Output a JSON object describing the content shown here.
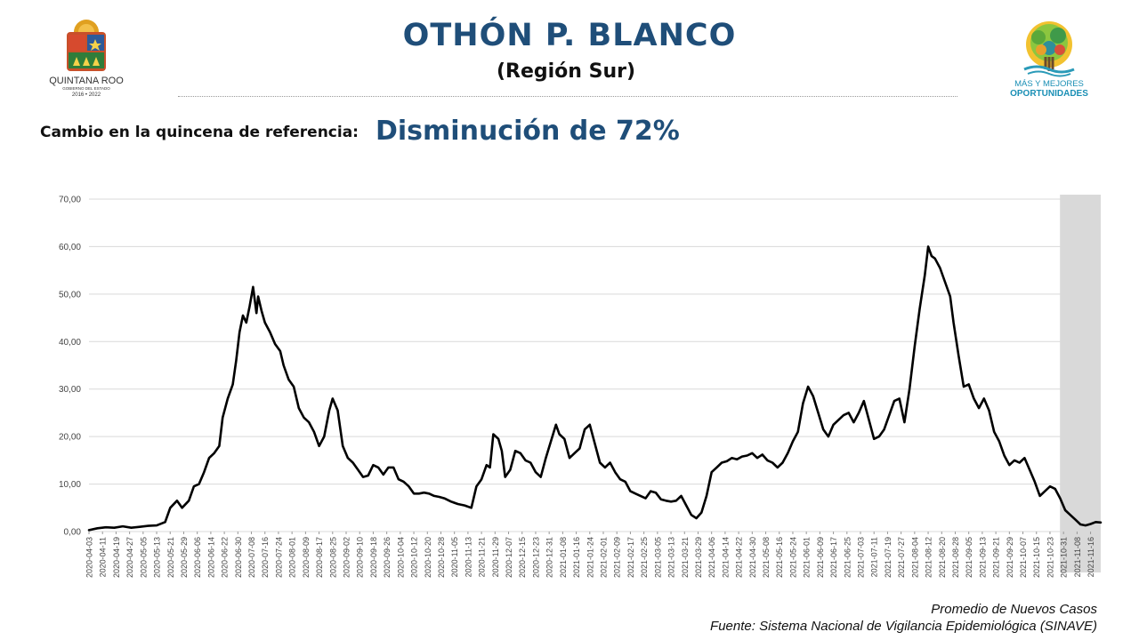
{
  "header": {
    "title": "OTHÓN P. BLANCO",
    "subtitle": "(Región Sur)"
  },
  "summary": {
    "label": "Cambio en la quincena de referencia:",
    "value": "Disminución de 72%"
  },
  "logos": {
    "left": {
      "line1": "QUINTANA ROO",
      "line2": "GOBIERNO DEL ESTADO",
      "line3": "2016 • 2022"
    },
    "right": {
      "line1": "MÁS Y MEJORES",
      "line2": "OPORTUNIDADES"
    }
  },
  "footer": {
    "line1": "Promedio de Nuevos Casos",
    "line2": "Fuente: Sistema Nacional de Vigilancia Epidemiológica (SINAVE)"
  },
  "colors": {
    "title": "#1f4e79",
    "line": "#000000",
    "shade": "#d9d9d9",
    "grid": "#d9d9d9"
  },
  "chart_data": {
    "type": "line",
    "ylim": [
      0,
      70
    ],
    "yticks": [
      "0,00",
      "10,00",
      "20,00",
      "30,00",
      "40,00",
      "50,00",
      "60,00",
      "70,00"
    ],
    "x_start": "2020-04-03",
    "x_end": "2021-11-22",
    "tick_labels": [
      "2020-04-03",
      "2020-04-11",
      "2020-04-19",
      "2020-04-27",
      "2020-05-05",
      "2020-05-13",
      "2020-05-21",
      "2020-05-29",
      "2020-06-06",
      "2020-06-14",
      "2020-06-22",
      "2020-06-30",
      "2020-07-08",
      "2020-07-16",
      "2020-07-24",
      "2020-08-01",
      "2020-08-09",
      "2020-08-17",
      "2020-08-25",
      "2020-09-02",
      "2020-09-10",
      "2020-09-18",
      "2020-09-26",
      "2020-10-04",
      "2020-10-12",
      "2020-10-20",
      "2020-10-28",
      "2020-11-05",
      "2020-11-13",
      "2020-11-21",
      "2020-11-29",
      "2020-12-07",
      "2020-12-15",
      "2020-12-23",
      "2020-12-31",
      "2021-01-08",
      "2021-01-16",
      "2021-01-24",
      "2021-02-01",
      "2021-02-09",
      "2021-02-17",
      "2021-02-25",
      "2021-03-05",
      "2021-03-13",
      "2021-03-21",
      "2021-03-29",
      "2021-04-06",
      "2021-04-14",
      "2021-04-22",
      "2021-04-30",
      "2021-05-08",
      "2021-05-16",
      "2021-05-24",
      "2021-06-01",
      "2021-06-09",
      "2021-06-17",
      "2021-06-25",
      "2021-07-03",
      "2021-07-11",
      "2021-07-19",
      "2021-07-27",
      "2021-08-04",
      "2021-08-12",
      "2021-08-20",
      "2021-08-28",
      "2021-09-05",
      "2021-09-13",
      "2021-09-21",
      "2021-09-29",
      "2021-10-07",
      "2021-10-15",
      "2021-10-23",
      "2021-10-31",
      "2021-11-08",
      "2021-11-16"
    ],
    "shaded_region": [
      "2021-10-31",
      "2021-11-22"
    ],
    "series": [
      {
        "points": [
          [
            "2020-04-03",
            0.3
          ],
          [
            "2020-04-08",
            0.7
          ],
          [
            "2020-04-13",
            0.9
          ],
          [
            "2020-04-18",
            0.8
          ],
          [
            "2020-04-23",
            1.1
          ],
          [
            "2020-04-28",
            0.8
          ],
          [
            "2020-05-03",
            1.0
          ],
          [
            "2020-05-08",
            1.2
          ],
          [
            "2020-05-13",
            1.3
          ],
          [
            "2020-05-18",
            2.0
          ],
          [
            "2020-05-21",
            5.0
          ],
          [
            "2020-05-25",
            6.5
          ],
          [
            "2020-05-28",
            5.0
          ],
          [
            "2020-06-01",
            6.5
          ],
          [
            "2020-06-04",
            9.5
          ],
          [
            "2020-06-07",
            10.0
          ],
          [
            "2020-06-10",
            12.5
          ],
          [
            "2020-06-13",
            15.5
          ],
          [
            "2020-06-16",
            16.5
          ],
          [
            "2020-06-19",
            18.0
          ],
          [
            "2020-06-21",
            24.0
          ],
          [
            "2020-06-24",
            28.0
          ],
          [
            "2020-06-27",
            31.0
          ],
          [
            "2020-06-29",
            36.0
          ],
          [
            "2020-07-01",
            42.0
          ],
          [
            "2020-07-03",
            45.5
          ],
          [
            "2020-07-05",
            44.0
          ],
          [
            "2020-07-07",
            47.5
          ],
          [
            "2020-07-09",
            51.5
          ],
          [
            "2020-07-11",
            46.0
          ],
          [
            "2020-07-12",
            49.5
          ],
          [
            "2020-07-14",
            46.5
          ],
          [
            "2020-07-16",
            44.0
          ],
          [
            "2020-07-19",
            42.0
          ],
          [
            "2020-07-22",
            39.5
          ],
          [
            "2020-07-25",
            38.0
          ],
          [
            "2020-07-27",
            35.0
          ],
          [
            "2020-07-30",
            32.0
          ],
          [
            "2020-08-02",
            30.5
          ],
          [
            "2020-08-05",
            26.0
          ],
          [
            "2020-08-08",
            24.0
          ],
          [
            "2020-08-11",
            23.0
          ],
          [
            "2020-08-14",
            21.0
          ],
          [
            "2020-08-17",
            18.0
          ],
          [
            "2020-08-20",
            20.0
          ],
          [
            "2020-08-23",
            25.5
          ],
          [
            "2020-08-25",
            28.0
          ],
          [
            "2020-08-28",
            25.5
          ],
          [
            "2020-08-31",
            18.0
          ],
          [
            "2020-09-03",
            15.5
          ],
          [
            "2020-09-06",
            14.5
          ],
          [
            "2020-09-09",
            13.0
          ],
          [
            "2020-09-12",
            11.5
          ],
          [
            "2020-09-15",
            11.8
          ],
          [
            "2020-09-18",
            14.0
          ],
          [
            "2020-09-21",
            13.5
          ],
          [
            "2020-09-24",
            12.0
          ],
          [
            "2020-09-27",
            13.5
          ],
          [
            "2020-09-30",
            13.5
          ],
          [
            "2020-10-03",
            11.0
          ],
          [
            "2020-10-06",
            10.5
          ],
          [
            "2020-10-09",
            9.5
          ],
          [
            "2020-10-12",
            8.0
          ],
          [
            "2020-10-15",
            8.0
          ],
          [
            "2020-10-18",
            8.2
          ],
          [
            "2020-10-21",
            8.0
          ],
          [
            "2020-10-24",
            7.5
          ],
          [
            "2020-10-27",
            7.3
          ],
          [
            "2020-10-30",
            7.0
          ],
          [
            "2020-11-03",
            6.3
          ],
          [
            "2020-11-07",
            5.8
          ],
          [
            "2020-11-11",
            5.5
          ],
          [
            "2020-11-15",
            5.0
          ],
          [
            "2020-11-18",
            9.5
          ],
          [
            "2020-11-21",
            11.0
          ],
          [
            "2020-11-24",
            14.0
          ],
          [
            "2020-11-26",
            13.5
          ],
          [
            "2020-11-28",
            20.5
          ],
          [
            "2020-12-01",
            19.5
          ],
          [
            "2020-12-03",
            17.0
          ],
          [
            "2020-12-05",
            11.5
          ],
          [
            "2020-12-08",
            13.0
          ],
          [
            "2020-12-11",
            17.0
          ],
          [
            "2020-12-14",
            16.5
          ],
          [
            "2020-12-17",
            15.0
          ],
          [
            "2020-12-20",
            14.5
          ],
          [
            "2020-12-23",
            12.5
          ],
          [
            "2020-12-26",
            11.5
          ],
          [
            "2020-12-29",
            15.5
          ],
          [
            "2021-01-01",
            19.0
          ],
          [
            "2021-01-04",
            22.5
          ],
          [
            "2021-01-06",
            20.5
          ],
          [
            "2021-01-09",
            19.5
          ],
          [
            "2021-01-12",
            15.5
          ],
          [
            "2021-01-15",
            16.5
          ],
          [
            "2021-01-18",
            17.5
          ],
          [
            "2021-01-21",
            21.5
          ],
          [
            "2021-01-24",
            22.5
          ],
          [
            "2021-01-27",
            18.5
          ],
          [
            "2021-01-30",
            14.5
          ],
          [
            "2021-02-02",
            13.5
          ],
          [
            "2021-02-05",
            14.5
          ],
          [
            "2021-02-08",
            12.5
          ],
          [
            "2021-02-11",
            11.0
          ],
          [
            "2021-02-14",
            10.5
          ],
          [
            "2021-02-17",
            8.5
          ],
          [
            "2021-02-20",
            8.0
          ],
          [
            "2021-02-23",
            7.5
          ],
          [
            "2021-02-26",
            7.0
          ],
          [
            "2021-03-01",
            8.5
          ],
          [
            "2021-03-04",
            8.2
          ],
          [
            "2021-03-07",
            6.8
          ],
          [
            "2021-03-10",
            6.5
          ],
          [
            "2021-03-13",
            6.3
          ],
          [
            "2021-03-16",
            6.5
          ],
          [
            "2021-03-19",
            7.5
          ],
          [
            "2021-03-22",
            5.5
          ],
          [
            "2021-03-25",
            3.5
          ],
          [
            "2021-03-28",
            2.8
          ],
          [
            "2021-03-31",
            4.0
          ],
          [
            "2021-04-03",
            7.5
          ],
          [
            "2021-04-06",
            12.5
          ],
          [
            "2021-04-09",
            13.5
          ],
          [
            "2021-04-12",
            14.5
          ],
          [
            "2021-04-15",
            14.8
          ],
          [
            "2021-04-18",
            15.5
          ],
          [
            "2021-04-21",
            15.2
          ],
          [
            "2021-04-24",
            15.8
          ],
          [
            "2021-04-27",
            16.0
          ],
          [
            "2021-04-30",
            16.5
          ],
          [
            "2021-05-03",
            15.5
          ],
          [
            "2021-05-06",
            16.2
          ],
          [
            "2021-05-09",
            15.0
          ],
          [
            "2021-05-12",
            14.5
          ],
          [
            "2021-05-15",
            13.5
          ],
          [
            "2021-05-18",
            14.5
          ],
          [
            "2021-05-21",
            16.5
          ],
          [
            "2021-05-24",
            19.0
          ],
          [
            "2021-05-27",
            21.0
          ],
          [
            "2021-05-30",
            27.0
          ],
          [
            "2021-06-02",
            30.5
          ],
          [
            "2021-06-05",
            28.5
          ],
          [
            "2021-06-08",
            25.0
          ],
          [
            "2021-06-11",
            21.5
          ],
          [
            "2021-06-14",
            20.0
          ],
          [
            "2021-06-17",
            22.5
          ],
          [
            "2021-06-20",
            23.5
          ],
          [
            "2021-06-23",
            24.5
          ],
          [
            "2021-06-26",
            25.0
          ],
          [
            "2021-06-29",
            23.0
          ],
          [
            "2021-07-02",
            25.0
          ],
          [
            "2021-07-05",
            27.5
          ],
          [
            "2021-07-08",
            23.5
          ],
          [
            "2021-07-11",
            19.5
          ],
          [
            "2021-07-14",
            20.0
          ],
          [
            "2021-07-17",
            21.5
          ],
          [
            "2021-07-20",
            24.5
          ],
          [
            "2021-07-23",
            27.5
          ],
          [
            "2021-07-26",
            28.0
          ],
          [
            "2021-07-29",
            23.0
          ],
          [
            "2021-08-01",
            30.0
          ],
          [
            "2021-08-04",
            39.0
          ],
          [
            "2021-08-07",
            47.0
          ],
          [
            "2021-08-10",
            54.0
          ],
          [
            "2021-08-12",
            60.0
          ],
          [
            "2021-08-14",
            58.0
          ],
          [
            "2021-08-16",
            57.5
          ],
          [
            "2021-08-19",
            55.5
          ],
          [
            "2021-08-22",
            52.5
          ],
          [
            "2021-08-25",
            49.5
          ],
          [
            "2021-08-27",
            44.0
          ],
          [
            "2021-08-30",
            37.0
          ],
          [
            "2021-09-02",
            30.5
          ],
          [
            "2021-09-05",
            31.0
          ],
          [
            "2021-09-08",
            28.0
          ],
          [
            "2021-09-11",
            26.0
          ],
          [
            "2021-09-14",
            28.0
          ],
          [
            "2021-09-17",
            25.5
          ],
          [
            "2021-09-20",
            21.0
          ],
          [
            "2021-09-23",
            19.0
          ],
          [
            "2021-09-26",
            16.0
          ],
          [
            "2021-09-29",
            14.0
          ],
          [
            "2021-10-02",
            15.0
          ],
          [
            "2021-10-05",
            14.5
          ],
          [
            "2021-10-08",
            15.5
          ],
          [
            "2021-10-11",
            13.0
          ],
          [
            "2021-10-14",
            10.5
          ],
          [
            "2021-10-17",
            7.5
          ],
          [
            "2021-10-20",
            8.5
          ],
          [
            "2021-10-23",
            9.5
          ],
          [
            "2021-10-26",
            9.0
          ],
          [
            "2021-10-29",
            7.0
          ],
          [
            "2021-11-01",
            4.5
          ],
          [
            "2021-11-04",
            3.5
          ],
          [
            "2021-11-07",
            2.5
          ],
          [
            "2021-11-10",
            1.5
          ],
          [
            "2021-11-13",
            1.3
          ],
          [
            "2021-11-16",
            1.6
          ],
          [
            "2021-11-19",
            2.0
          ],
          [
            "2021-11-22",
            1.9
          ]
        ]
      }
    ]
  }
}
